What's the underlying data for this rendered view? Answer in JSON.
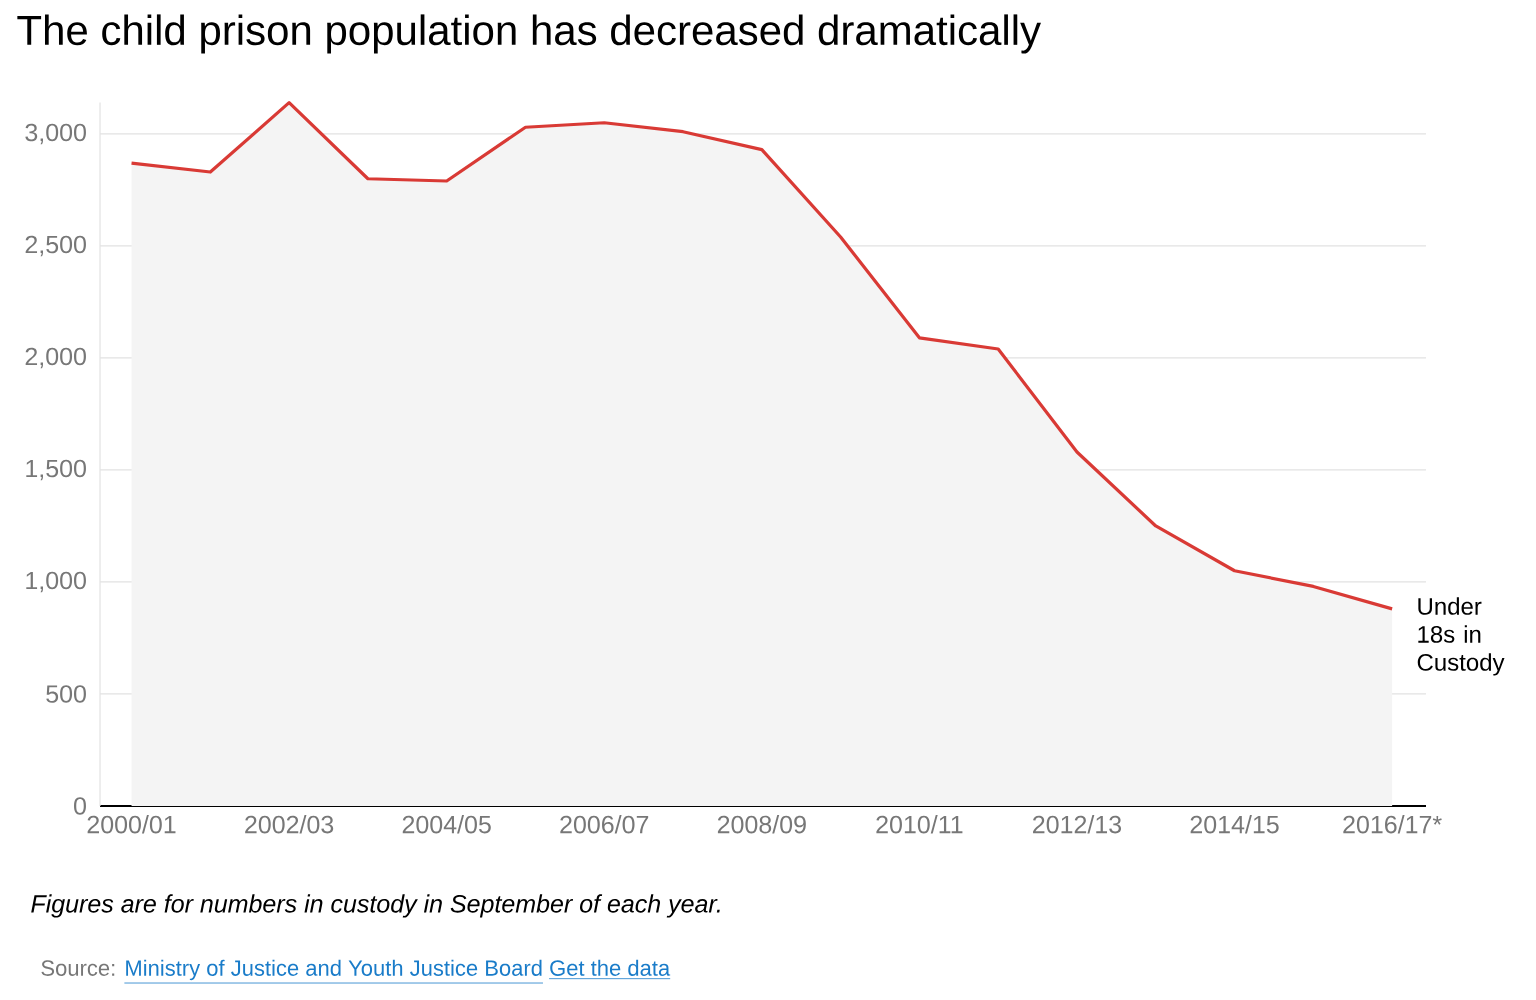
{
  "chart_data": {
    "type": "area",
    "title": "The child prison population has decreased dramatically",
    "categories": [
      "2000/01",
      null,
      "2002/03",
      null,
      "2004/05",
      null,
      "2006/07",
      null,
      "2008/09",
      null,
      "2010/11",
      null,
      "2012/13",
      null,
      "2014/15",
      null,
      "2016/17*"
    ],
    "series": [
      {
        "name": "Under 18s in Custody",
        "color": "#d93a35",
        "values": [
          2870,
          2830,
          3140,
          2800,
          2790,
          3030,
          3050,
          3010,
          2930,
          2540,
          2090,
          2040,
          1580,
          1250,
          1050,
          980,
          880
        ]
      }
    ],
    "yticks": [
      0,
      {
        "value": 500,
        "label": "500"
      },
      {
        "value": 1000,
        "label": "1,000"
      },
      {
        "value": 1500,
        "label": "1,500"
      },
      {
        "value": 2000,
        "label": "2,000"
      },
      {
        "value": 2500,
        "label": "2,500"
      },
      {
        "value": 3000,
        "label": "3,000"
      }
    ],
    "ylim": [
      0,
      3140
    ],
    "grid": "y",
    "annotations": [
      "Figures are for numbers in custody in September of each year.",
      "Source:",
      "Ministry of Justice and Youth Justice Board",
      "Get the data"
    ]
  }
}
